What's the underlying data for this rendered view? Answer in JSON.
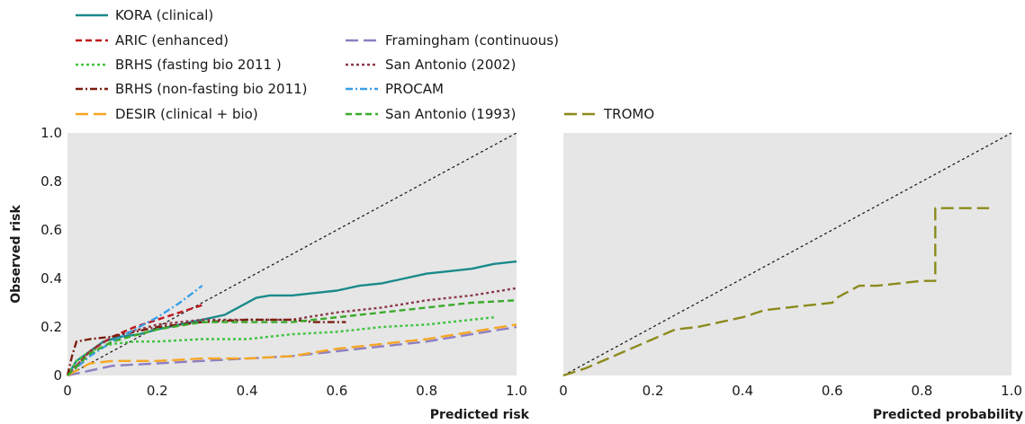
{
  "chart_data": [
    {
      "type": "line",
      "xlabel": "Predicted risk",
      "ylabel": "Observed risk",
      "xlim": [
        0,
        1
      ],
      "ylim": [
        0,
        1
      ],
      "xticks": [
        "0",
        "0.2",
        "0.4",
        "0.6",
        "0.8",
        "1.0"
      ],
      "yticks": [
        "0",
        "0.2",
        "0.4",
        "0.6",
        "0.8",
        "1.0"
      ],
      "background": "#e6e6e6",
      "grid": false,
      "reference_line": "diagonal",
      "series": [
        {
          "name": "KORA (clinical)",
          "color": "#1a8a8a",
          "dash": "solid",
          "x": [
            0,
            0.02,
            0.05,
            0.08,
            0.12,
            0.16,
            0.2,
            0.25,
            0.3,
            0.35,
            0.38,
            0.42,
            0.45,
            0.5,
            0.55,
            0.6,
            0.65,
            0.7,
            0.75,
            0.8,
            0.85,
            0.9,
            0.95,
            1.0
          ],
          "y": [
            0,
            0.06,
            0.1,
            0.14,
            0.16,
            0.17,
            0.19,
            0.21,
            0.23,
            0.25,
            0.28,
            0.32,
            0.33,
            0.33,
            0.34,
            0.35,
            0.37,
            0.38,
            0.4,
            0.42,
            0.43,
            0.44,
            0.46,
            0.47
          ]
        },
        {
          "name": "ARIC (enhanced)",
          "color": "#c0161d",
          "dash": "dashed",
          "x": [
            0,
            0.02,
            0.05,
            0.1,
            0.15,
            0.2,
            0.25,
            0.3
          ],
          "y": [
            0,
            0.04,
            0.1,
            0.16,
            0.2,
            0.23,
            0.26,
            0.29
          ]
        },
        {
          "name": "Framingham (continuous)",
          "color": "#8e7fc2",
          "dash": "longdash",
          "x": [
            0,
            0.05,
            0.1,
            0.2,
            0.3,
            0.4,
            0.5,
            0.6,
            0.7,
            0.8,
            0.9,
            1.0
          ],
          "y": [
            0,
            0.02,
            0.04,
            0.05,
            0.06,
            0.07,
            0.08,
            0.1,
            0.12,
            0.14,
            0.17,
            0.2
          ]
        },
        {
          "name": "BRHS (fasting bio 2011 )",
          "color": "#3ec43e",
          "dash": "dotted",
          "x": [
            0,
            0.02,
            0.05,
            0.1,
            0.15,
            0.2,
            0.3,
            0.4,
            0.5,
            0.6,
            0.7,
            0.8,
            0.9,
            0.95
          ],
          "y": [
            0,
            0.06,
            0.1,
            0.13,
            0.14,
            0.14,
            0.15,
            0.15,
            0.17,
            0.18,
            0.2,
            0.21,
            0.23,
            0.24
          ]
        },
        {
          "name": "San Antonio (2002)",
          "color": "#8b3a4a",
          "dash": "dotted",
          "x": [
            0,
            0.05,
            0.1,
            0.2,
            0.3,
            0.4,
            0.5,
            0.6,
            0.7,
            0.8,
            0.9,
            1.0
          ],
          "y": [
            0,
            0.1,
            0.16,
            0.21,
            0.23,
            0.23,
            0.23,
            0.26,
            0.28,
            0.31,
            0.33,
            0.36
          ]
        },
        {
          "name": "BRHS (non-fasting bio 2011)",
          "color": "#7a1f10",
          "dash": "dashdot",
          "x": [
            0,
            0.01,
            0.02,
            0.05,
            0.1,
            0.2,
            0.3,
            0.4,
            0.5,
            0.55,
            0.62
          ],
          "y": [
            0,
            0.08,
            0.14,
            0.15,
            0.16,
            0.2,
            0.22,
            0.23,
            0.23,
            0.22,
            0.22
          ]
        },
        {
          "name": "PROCAM",
          "color": "#3aa0e8",
          "dash": "dashdot",
          "x": [
            0,
            0.05,
            0.1,
            0.15,
            0.2,
            0.25,
            0.3
          ],
          "y": [
            0,
            0.08,
            0.14,
            0.19,
            0.24,
            0.3,
            0.37
          ]
        },
        {
          "name": "DESIR (clinical + bio)",
          "color": "#f5a623",
          "dash": "longdash",
          "x": [
            0,
            0.05,
            0.1,
            0.2,
            0.3,
            0.4,
            0.5,
            0.6,
            0.7,
            0.8,
            0.9,
            1.0
          ],
          "y": [
            0,
            0.05,
            0.06,
            0.06,
            0.07,
            0.07,
            0.08,
            0.11,
            0.13,
            0.15,
            0.18,
            0.21
          ]
        },
        {
          "name": "San Antonio (1993)",
          "color": "#3aaa2a",
          "dash": "dashed",
          "x": [
            0,
            0.05,
            0.1,
            0.2,
            0.3,
            0.4,
            0.5,
            0.6,
            0.7,
            0.8,
            0.9,
            1.0
          ],
          "y": [
            0,
            0.09,
            0.14,
            0.19,
            0.22,
            0.22,
            0.22,
            0.24,
            0.26,
            0.28,
            0.3,
            0.31
          ]
        }
      ]
    },
    {
      "type": "line",
      "xlabel": "Predicted probability",
      "ylabel": "",
      "xlim": [
        0,
        1
      ],
      "ylim": [
        0,
        1
      ],
      "xticks": [
        "0",
        "0.2",
        "0.4",
        "0.6",
        "0.8",
        "1.0"
      ],
      "yticks": [],
      "background": "#e6e6e6",
      "grid": false,
      "reference_line": "diagonal",
      "series": [
        {
          "name": "TROMO",
          "color": "#8b8a1c",
          "dash": "longdash",
          "x": [
            0,
            0.05,
            0.1,
            0.15,
            0.2,
            0.25,
            0.3,
            0.35,
            0.4,
            0.45,
            0.5,
            0.55,
            0.6,
            0.61,
            0.63,
            0.66,
            0.7,
            0.75,
            0.8,
            0.83,
            0.83,
            0.95
          ],
          "y": [
            0,
            0.03,
            0.07,
            0.11,
            0.15,
            0.19,
            0.2,
            0.22,
            0.24,
            0.27,
            0.28,
            0.29,
            0.3,
            0.32,
            0.34,
            0.37,
            0.37,
            0.38,
            0.39,
            0.39,
            0.69,
            0.69
          ]
        }
      ]
    }
  ]
}
